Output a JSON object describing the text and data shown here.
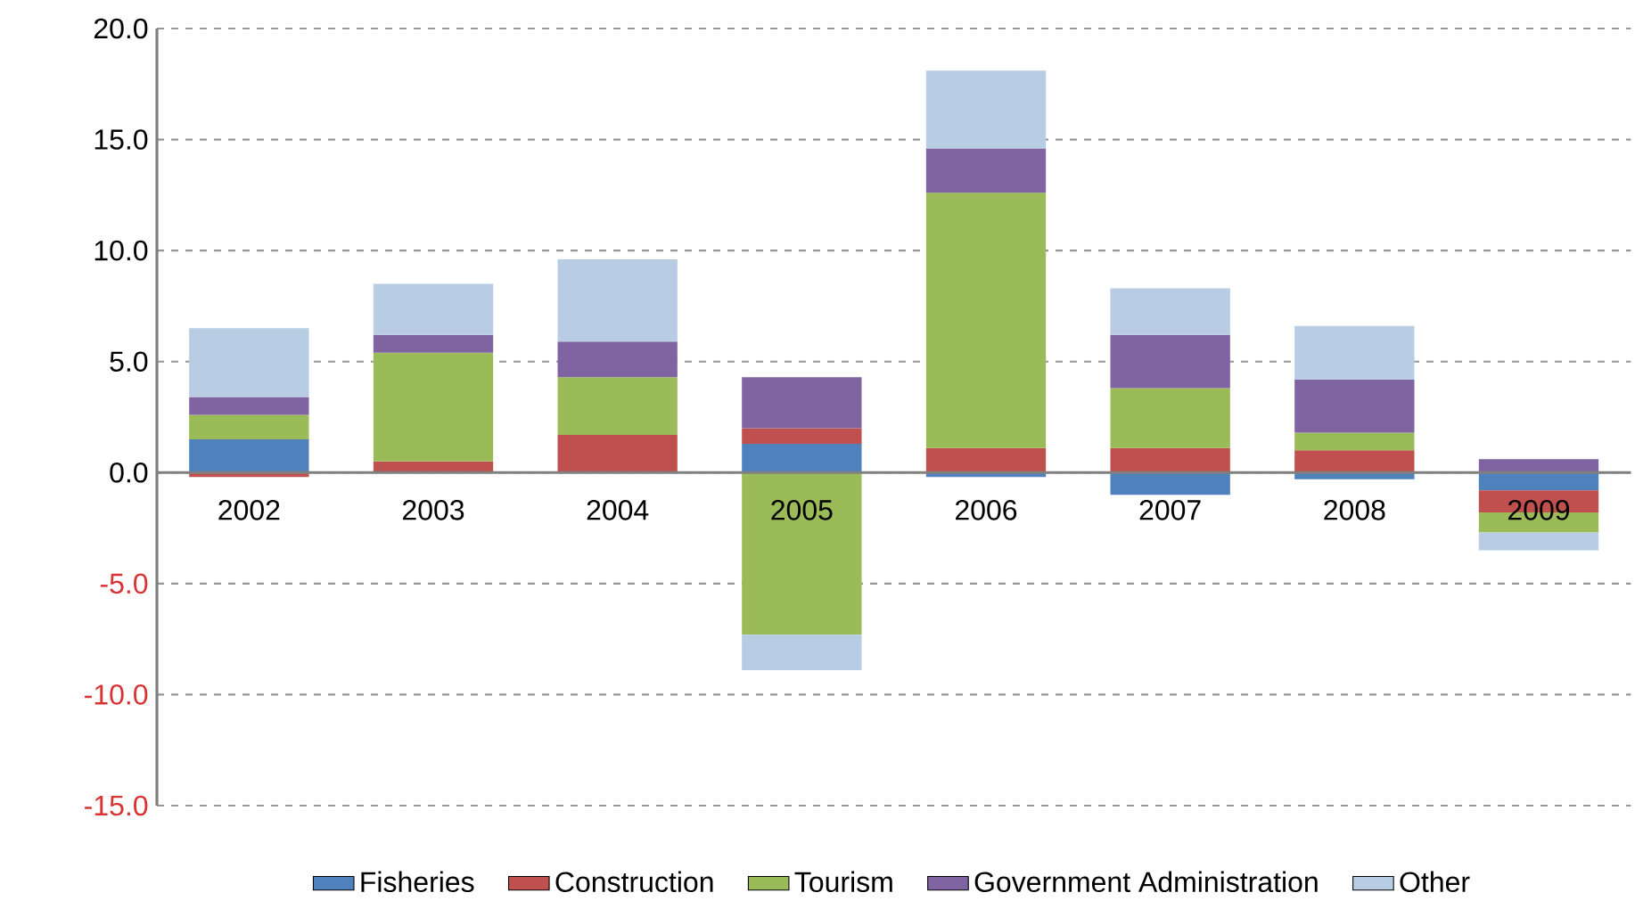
{
  "chart_data": {
    "type": "bar",
    "stacked": true,
    "categories": [
      "2002",
      "2003",
      "2004",
      "2005",
      "2006",
      "2007",
      "2008",
      "2009"
    ],
    "series": [
      {
        "name": "Fisheries",
        "color": "#4f81bd",
        "values": [
          1.5,
          0,
          0,
          1.3,
          -0.2,
          -1.0,
          -0.3,
          -0.8
        ]
      },
      {
        "name": "Construction",
        "color": "#c0504d",
        "values": [
          -0.2,
          0.5,
          1.7,
          0.7,
          1.1,
          1.1,
          1.0,
          -1.0
        ]
      },
      {
        "name": "Tourism",
        "color": "#9bbb59",
        "values": [
          1.1,
          4.9,
          2.6,
          -7.3,
          11.5,
          2.7,
          0.8,
          -0.9
        ]
      },
      {
        "name": "Government Administration",
        "color": "#8064a2",
        "values": [
          0.8,
          0.8,
          1.6,
          2.3,
          2.0,
          2.4,
          2.4,
          0.6
        ]
      },
      {
        "name": "Other",
        "color": "#b8cce4",
        "values": [
          3.1,
          2.3,
          3.7,
          -1.6,
          3.5,
          2.1,
          2.4,
          -0.8
        ]
      }
    ],
    "ylim": [
      -15,
      20
    ],
    "yticks": [
      {
        "value": -15,
        "label": "-15.0"
      },
      {
        "value": -10,
        "label": "-10.0"
      },
      {
        "value": -5,
        "label": "-5.0"
      },
      {
        "value": 0,
        "label": "0.0"
      },
      {
        "value": 5,
        "label": "5.0"
      },
      {
        "value": 10,
        "label": "10.0"
      },
      {
        "value": 15,
        "label": "15.0"
      },
      {
        "value": 20,
        "label": "20.0"
      }
    ],
    "grid": "y",
    "legend": "bottom"
  }
}
